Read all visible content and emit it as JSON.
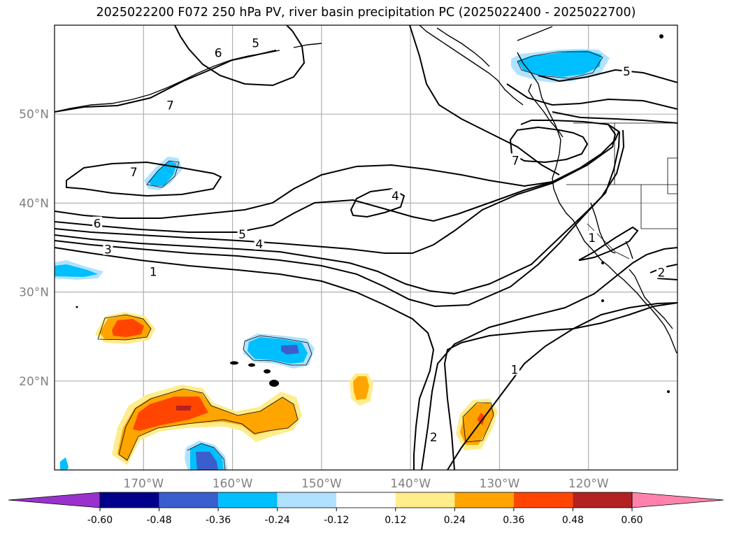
{
  "title": "2025022200 F072 250 hPa PV, river basin precipitation PC (2025022400 - 2025022700)",
  "map": {
    "lon_range": [
      -180,
      -110
    ],
    "lat_range": [
      10,
      60
    ],
    "lat_gridlines": [
      {
        "value": 50,
        "label": "50°N"
      },
      {
        "value": 40,
        "label": "40°N"
      },
      {
        "value": 30,
        "label": "30°N"
      },
      {
        "value": 20,
        "label": "20°N"
      }
    ],
    "lon_gridlines": [
      {
        "value": -170,
        "label": "170°W"
      },
      {
        "value": -160,
        "label": "160°W"
      },
      {
        "value": -150,
        "label": "150°W"
      },
      {
        "value": -140,
        "label": "140°W"
      },
      {
        "value": -130,
        "label": "130°W"
      },
      {
        "value": -120,
        "label": "120°W"
      }
    ],
    "pv_contour_labels": [
      {
        "text": "6",
        "lon": -175.2,
        "lat": 37.7
      },
      {
        "text": "3",
        "lon": -174.0,
        "lat": 34.8
      },
      {
        "text": "1",
        "lon": -168.9,
        "lat": 32.3
      },
      {
        "text": "5",
        "lon": -158.9,
        "lat": 36.5
      },
      {
        "text": "4",
        "lon": -157.0,
        "lat": 35.4
      },
      {
        "text": "7",
        "lon": -167.0,
        "lat": 51.0
      },
      {
        "text": "7",
        "lon": -171.1,
        "lat": 43.5
      },
      {
        "text": "6",
        "lon": -161.6,
        "lat": 56.9
      },
      {
        "text": "5",
        "lon": -157.4,
        "lat": 58.0
      },
      {
        "text": "4",
        "lon": -141.7,
        "lat": 40.8
      },
      {
        "text": "7",
        "lon": -128.2,
        "lat": 44.8
      },
      {
        "text": "5",
        "lon": -115.7,
        "lat": 54.8
      },
      {
        "text": "1",
        "lon": -119.6,
        "lat": 36.1
      },
      {
        "text": "2",
        "lon": -111.8,
        "lat": 32.2
      },
      {
        "text": "1",
        "lon": -128.3,
        "lat": 21.3
      },
      {
        "text": "2",
        "lon": -137.4,
        "lat": 13.7
      }
    ]
  },
  "colorbar": {
    "ticks": [
      "-0.60",
      "-0.48",
      "-0.36",
      "-0.24",
      "-0.12",
      "0.12",
      "0.24",
      "0.36",
      "0.48",
      "0.60"
    ],
    "colors": [
      "#9932cc",
      "#00008b",
      "#3a5fcd",
      "#00bfff",
      "#b0e2ff",
      "#ffffff",
      "#ffec8b",
      "#ffa500",
      "#ff4500",
      "#b22222",
      "#ff82ab"
    ],
    "extend": "both"
  }
}
